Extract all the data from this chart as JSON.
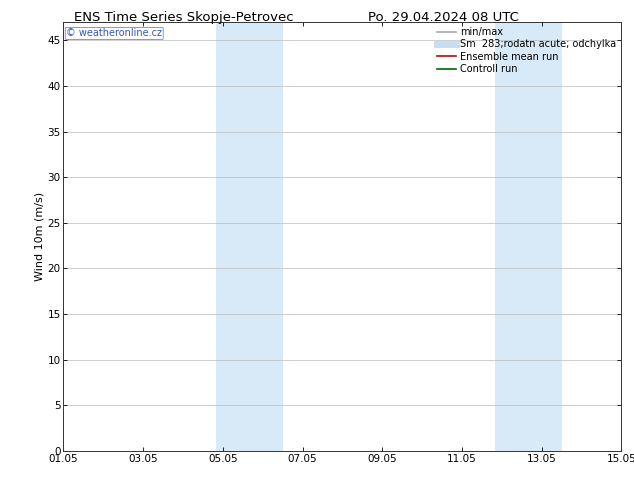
{
  "title_left": "ENS Time Series Skopje-Petrovec",
  "title_right": "Po. 29.04.2024 08 UTC",
  "ylabel": "Wind 10m (m/s)",
  "ymin": 0,
  "ymax": 47,
  "yticks": [
    0,
    5,
    10,
    15,
    20,
    25,
    30,
    35,
    40,
    45
  ],
  "xtick_labels": [
    "01.05",
    "03.05",
    "05.05",
    "07.05",
    "09.05",
    "11.05",
    "13.05",
    "15.05"
  ],
  "xtick_positions": [
    0,
    2,
    4,
    6,
    8,
    10,
    12,
    14
  ],
  "background_color": "#ffffff",
  "plot_bg_color": "#ffffff",
  "shaded_bands": [
    {
      "xstart": 3.83,
      "xend": 5.5,
      "color": "#d8eaf8"
    },
    {
      "xstart": 10.83,
      "xend": 12.5,
      "color": "#d8eaf8"
    }
  ],
  "watermark_text": "© weatheronline.cz",
  "watermark_color": "#3355cc",
  "legend_items": [
    {
      "label": "min/max",
      "color": "#aaaaaa",
      "lw": 1.2,
      "ls": "-"
    },
    {
      "label": "Sm  283;rodatn acute; odchylka",
      "color": "#c8ddf0",
      "lw": 5,
      "ls": "-"
    },
    {
      "label": "Ensemble mean run",
      "color": "#cc0000",
      "lw": 1.2,
      "ls": "-"
    },
    {
      "label": "Controll run",
      "color": "#006600",
      "lw": 1.2,
      "ls": "-"
    }
  ],
  "title_fontsize": 9.5,
  "tick_fontsize": 7.5,
  "ylabel_fontsize": 8,
  "watermark_fontsize": 7,
  "legend_fontsize": 7
}
